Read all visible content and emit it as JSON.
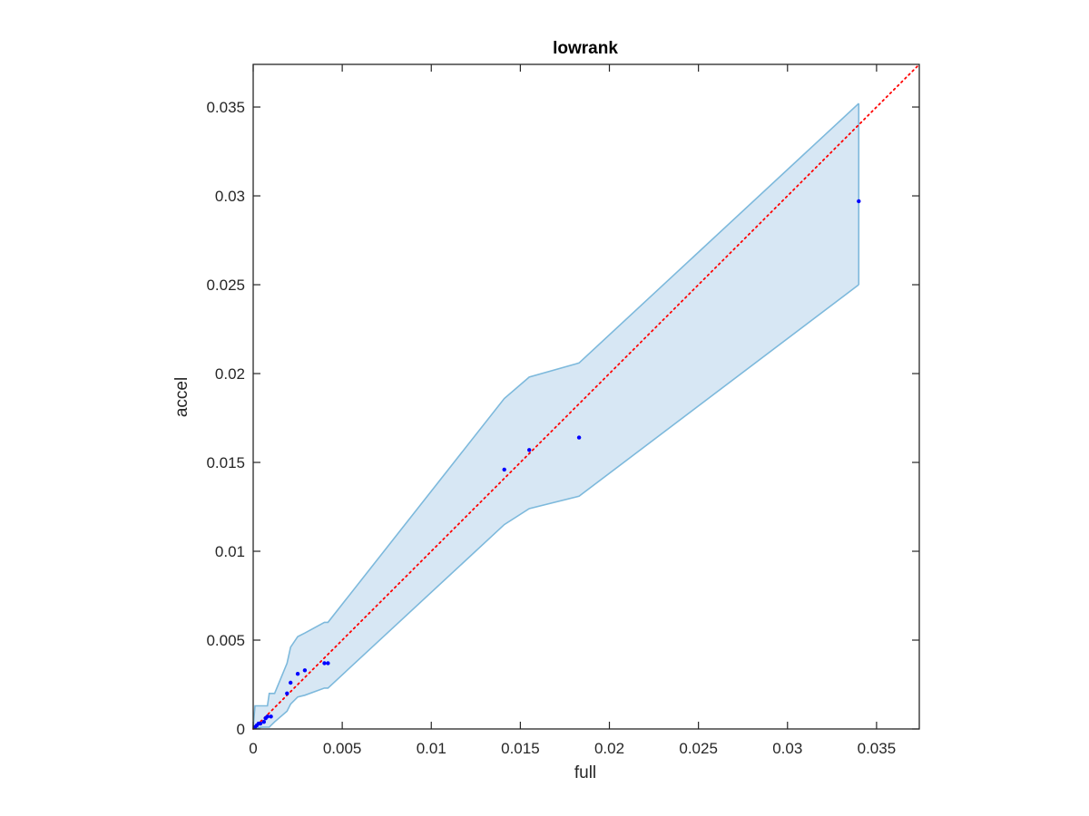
{
  "chart_data": {
    "type": "scatter",
    "title": "lowrank",
    "xlabel": "full",
    "ylabel": "accel",
    "xlim": [
      0,
      0.0374
    ],
    "ylim": [
      0,
      0.0374
    ],
    "grid": false,
    "xticks": [
      {
        "value": 0,
        "label": "0"
      },
      {
        "value": 0.005,
        "label": "0.005"
      },
      {
        "value": 0.01,
        "label": "0.01"
      },
      {
        "value": 0.015,
        "label": "0.015"
      },
      {
        "value": 0.02,
        "label": "0.02"
      },
      {
        "value": 0.025,
        "label": "0.025"
      },
      {
        "value": 0.03,
        "label": "0.03"
      },
      {
        "value": 0.035,
        "label": "0.035"
      }
    ],
    "yticks": [
      {
        "value": 0,
        "label": "0"
      },
      {
        "value": 0.005,
        "label": "0.005"
      },
      {
        "value": 0.01,
        "label": "0.01"
      },
      {
        "value": 0.015,
        "label": "0.015"
      },
      {
        "value": 0.02,
        "label": "0.02"
      },
      {
        "value": 0.025,
        "label": "0.025"
      },
      {
        "value": 0.03,
        "label": "0.03"
      },
      {
        "value": 0.035,
        "label": "0.035"
      }
    ],
    "points": [
      {
        "x": 0.0001,
        "y": 0.0001
      },
      {
        "x": 0.0002,
        "y": 0.0002
      },
      {
        "x": 0.0003,
        "y": 0.0003
      },
      {
        "x": 0.0004,
        "y": 0.0003
      },
      {
        "x": 0.0006,
        "y": 0.0004
      },
      {
        "x": 0.0007,
        "y": 0.0006
      },
      {
        "x": 0.0008,
        "y": 0.0007
      },
      {
        "x": 0.001,
        "y": 0.0007
      },
      {
        "x": 0.0019,
        "y": 0.002
      },
      {
        "x": 0.0021,
        "y": 0.0026
      },
      {
        "x": 0.0025,
        "y": 0.0031
      },
      {
        "x": 0.0029,
        "y": 0.0033
      },
      {
        "x": 0.004,
        "y": 0.0037
      },
      {
        "x": 0.0042,
        "y": 0.0037
      },
      {
        "x": 0.0141,
        "y": 0.0146
      },
      {
        "x": 0.0155,
        "y": 0.0157
      },
      {
        "x": 0.0183,
        "y": 0.0164
      },
      {
        "x": 0.034,
        "y": 0.0297
      }
    ],
    "band": {
      "upper": [
        {
          "x": 0,
          "y": 0.0001
        },
        {
          "x": 0.0001,
          "y": 0.0013
        },
        {
          "x": 0.0008,
          "y": 0.0013
        },
        {
          "x": 0.0009,
          "y": 0.002
        },
        {
          "x": 0.0012,
          "y": 0.002
        },
        {
          "x": 0.0019,
          "y": 0.0037
        },
        {
          "x": 0.0021,
          "y": 0.0046
        },
        {
          "x": 0.0025,
          "y": 0.0052
        },
        {
          "x": 0.0029,
          "y": 0.0054
        },
        {
          "x": 0.004,
          "y": 0.006
        },
        {
          "x": 0.0042,
          "y": 0.006
        },
        {
          "x": 0.0141,
          "y": 0.0186
        },
        {
          "x": 0.0155,
          "y": 0.0198
        },
        {
          "x": 0.0183,
          "y": 0.0206
        },
        {
          "x": 0.034,
          "y": 0.0352
        }
      ],
      "lower": [
        {
          "x": 0,
          "y": 0
        },
        {
          "x": 0.0005,
          "y": 0.0001
        },
        {
          "x": 0.0009,
          "y": 0.0001
        },
        {
          "x": 0.0012,
          "y": 0.0004
        },
        {
          "x": 0.0019,
          "y": 0.001
        },
        {
          "x": 0.0021,
          "y": 0.0014
        },
        {
          "x": 0.0025,
          "y": 0.0018
        },
        {
          "x": 0.0029,
          "y": 0.0019
        },
        {
          "x": 0.004,
          "y": 0.0023
        },
        {
          "x": 0.0042,
          "y": 0.0023
        },
        {
          "x": 0.0141,
          "y": 0.0115
        },
        {
          "x": 0.0155,
          "y": 0.0124
        },
        {
          "x": 0.0183,
          "y": 0.0131
        },
        {
          "x": 0.034,
          "y": 0.025
        }
      ]
    },
    "reference_line": {
      "style": "dotted",
      "from": [
        0,
        0
      ],
      "to": [
        0.0374,
        0.0374
      ]
    },
    "colors": {
      "points": "#0000ff",
      "band_fill": "#d7e7f4",
      "band_edge": "#7db9dc",
      "reference_line": "#ff0000",
      "axes": "#262626"
    }
  }
}
